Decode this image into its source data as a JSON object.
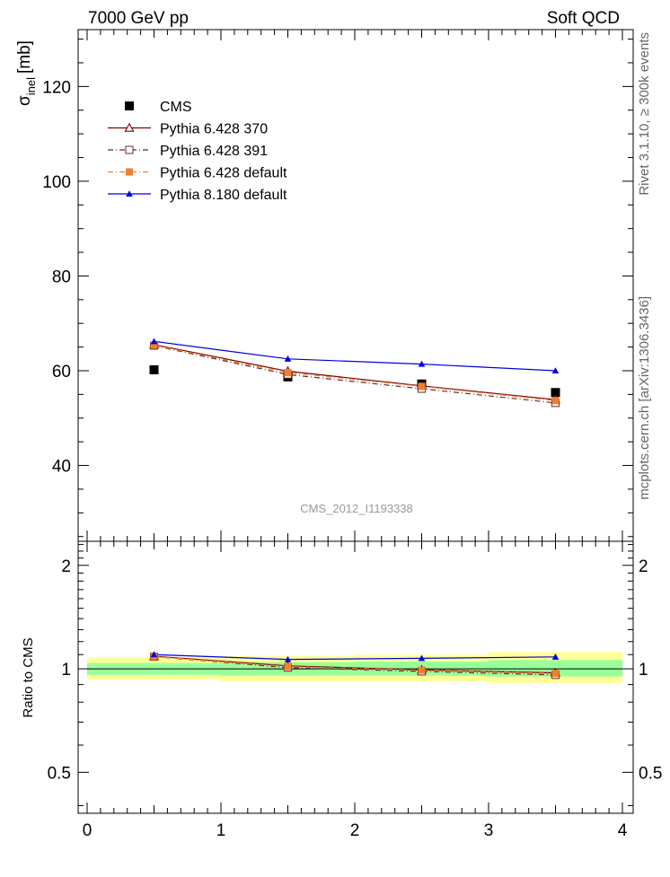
{
  "header": {
    "left": "7000 GeV pp",
    "right": "Soft QCD"
  },
  "side_labels": {
    "rivet": "Rivet 3.1.10, ≥ 300k events",
    "mcplots": "mcplots.cern.ch [arXiv:1306.3436]"
  },
  "analysis_label": "CMS_2012_I1193338",
  "colors": {
    "cms": "#000000",
    "py370": "#800000",
    "py391": "#6a2a2a",
    "py_default": "#f08030",
    "py8": "#0000dd",
    "band_yellow": "#ffff99",
    "band_green": "#99ff99"
  },
  "chart_data": [
    {
      "type": "line",
      "title": "",
      "ylabel": "σ",
      "ylabel_sub": "inel",
      "ylabel_unit": "[mb]",
      "xlim": [
        0,
        4
      ],
      "ylim": [
        24,
        132
      ],
      "yticks": [
        40,
        60,
        80,
        100,
        120
      ],
      "ytick_labels": [
        "40",
        "60",
        "80",
        "100",
        "120"
      ],
      "x": [
        0.5,
        1.5,
        2.5,
        3.5
      ],
      "series": [
        {
          "name": "CMS",
          "values": [
            60.2,
            58.7,
            57.2,
            55.4
          ],
          "marker": "square-filled",
          "line": "none",
          "color": "#000000"
        },
        {
          "name": "Pythia 6.428 370",
          "values": [
            65.5,
            59.9,
            56.8,
            53.9
          ],
          "marker": "triangle-open",
          "line": "solid",
          "color": "#800000"
        },
        {
          "name": "Pythia 6.428 391",
          "values": [
            65.3,
            59.2,
            56.2,
            53.2
          ],
          "marker": "square-open",
          "line": "dashdot",
          "color": "#6a2a2a"
        },
        {
          "name": "Pythia 6.428 default",
          "values": [
            65.4,
            59.6,
            56.7,
            53.7
          ],
          "marker": "square-filled",
          "line": "dashdot",
          "color": "#f08030"
        },
        {
          "name": "Pythia 8.180 default",
          "values": [
            66.2,
            62.5,
            61.4,
            60.0
          ],
          "marker": "triangle-filled",
          "line": "solid",
          "color": "#0000dd"
        }
      ]
    },
    {
      "type": "line",
      "ylabel": "Ratio to CMS",
      "xlim": [
        0,
        4
      ],
      "ylim": [
        0.38,
        2.35
      ],
      "yticks": [
        0.5,
        1,
        2
      ],
      "ytick_labels": [
        "0.5",
        "1",
        "2"
      ],
      "xticks": [
        0,
        1,
        2,
        3,
        4
      ],
      "xtick_labels": [
        "0",
        "1",
        "2",
        "3",
        "4"
      ],
      "x": [
        0.5,
        1.5,
        2.5,
        3.5
      ],
      "bands": {
        "edges": [
          0,
          1,
          2,
          3,
          4
        ],
        "yellow": [
          [
            0.93,
            1.08
          ],
          [
            0.92,
            1.09
          ],
          [
            0.92,
            1.1
          ],
          [
            0.91,
            1.12
          ]
        ],
        "green": [
          [
            0.96,
            1.04
          ],
          [
            0.955,
            1.045
          ],
          [
            0.955,
            1.05
          ],
          [
            0.95,
            1.06
          ]
        ]
      },
      "series": [
        {
          "name": "Pythia 6.428 370",
          "values": [
            1.088,
            1.02,
            0.993,
            0.973
          ]
        },
        {
          "name": "Pythia 6.428 391",
          "values": [
            1.085,
            1.008,
            0.983,
            0.96
          ]
        },
        {
          "name": "Pythia 6.428 default",
          "values": [
            1.086,
            1.015,
            0.991,
            0.969
          ]
        },
        {
          "name": "Pythia 8.180 default",
          "values": [
            1.1,
            1.065,
            1.073,
            1.083
          ]
        }
      ]
    }
  ]
}
